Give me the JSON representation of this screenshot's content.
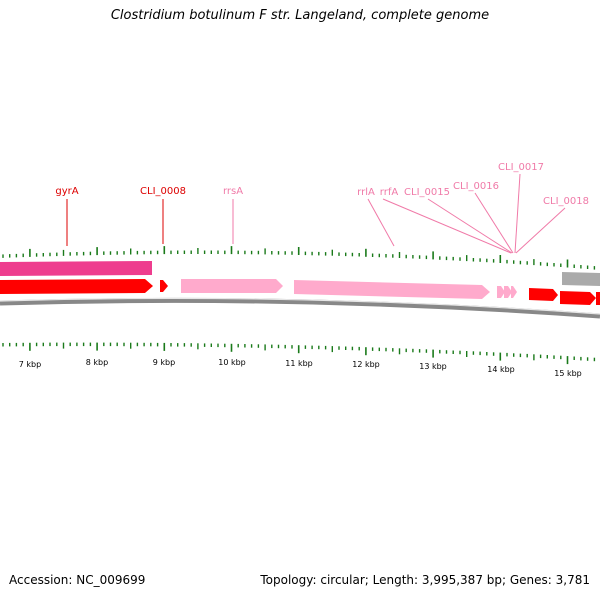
{
  "title": "Clostridium botulinum F str. Langeland, complete genome",
  "footer": {
    "accession": "Accession: NC_009699",
    "stats": "Topology: circular; Length: 3,995,387 bp; Genes: 3,781"
  },
  "colors": {
    "cds": "#ff0000",
    "rrna": "#ffaacc",
    "label_red": "#dd0000",
    "label_pink": "#f07aa8",
    "tick": "#1a7a1a",
    "magenta": "#ee3d8e",
    "gray": "#aaaaaa"
  },
  "kbp_labels": [
    "7 kbp",
    "8 kbp",
    "9 kbp",
    "10 kbp",
    "11 kbp",
    "12 kbp",
    "13 kbp",
    "14 kbp",
    "15 kbp"
  ],
  "gene_labels": [
    {
      "text": "gyrA",
      "color": "red"
    },
    {
      "text": "CLI_0008",
      "color": "red"
    },
    {
      "text": "rrsA",
      "color": "pink"
    },
    {
      "text": "rrlA",
      "color": "pink"
    },
    {
      "text": "rrfA",
      "color": "pink"
    },
    {
      "text": "CLI_0015",
      "color": "pink"
    },
    {
      "text": "CLI_0016",
      "color": "pink"
    },
    {
      "text": "CLI_0017",
      "color": "pink"
    },
    {
      "text": "CLI_0018",
      "color": "pink"
    }
  ]
}
